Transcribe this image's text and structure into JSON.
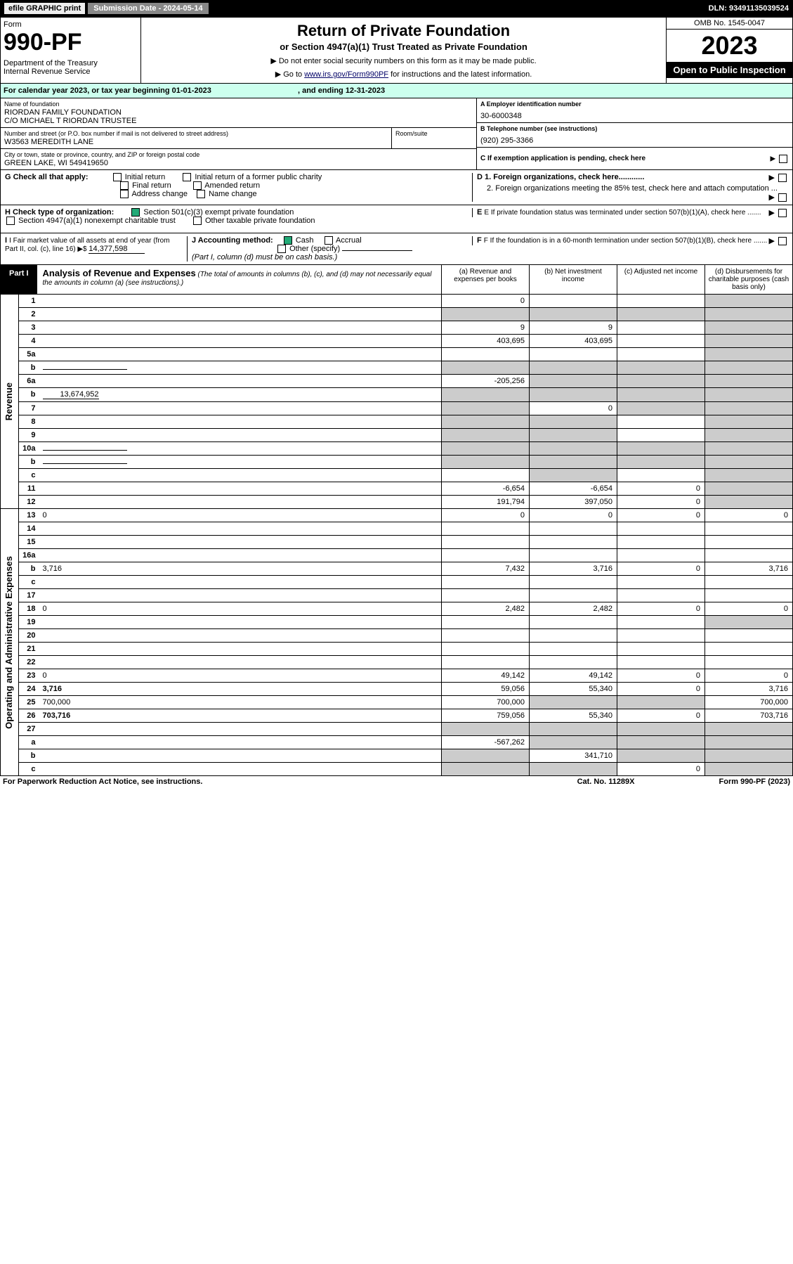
{
  "topbar": {
    "efile": "efile GRAPHIC print",
    "submission": "Submission Date - 2024-05-14",
    "dln": "DLN: 93491135039524"
  },
  "header": {
    "form_label": "Form",
    "form_no": "990-PF",
    "dept": "Department of the Treasury\nInternal Revenue Service",
    "title": "Return of Private Foundation",
    "subtitle": "or Section 4947(a)(1) Trust Treated as Private Foundation",
    "instr1": "▶ Do not enter social security numbers on this form as it may be made public.",
    "instr2_pre": "▶ Go to ",
    "instr2_link": "www.irs.gov/Form990PF",
    "instr2_post": " for instructions and the latest information.",
    "omb": "OMB No. 1545-0047",
    "year": "2023",
    "open": "Open to Public Inspection"
  },
  "calyear": {
    "text": "For calendar year 2023, or tax year beginning 01-01-2023",
    "ending": ", and ending 12-31-2023"
  },
  "entity": {
    "name_lbl": "Name of foundation",
    "name": "RIORDAN FAMILY FOUNDATION\nC/O MICHAEL T RIORDAN TRUSTEE",
    "addr_lbl": "Number and street (or P.O. box number if mail is not delivered to street address)",
    "addr": "W3563 MEREDITH LANE",
    "room_lbl": "Room/suite",
    "room": "",
    "city_lbl": "City or town, state or province, country, and ZIP or foreign postal code",
    "city": "GREEN LAKE, WI  549419650",
    "ein_lbl": "A Employer identification number",
    "ein": "30-6000348",
    "phone_lbl": "B Telephone number (see instructions)",
    "phone": "(920) 295-3366",
    "c_lbl": "C If exemption application is pending, check here"
  },
  "checks": {
    "g_lbl": "G Check all that apply:",
    "g_initial": "Initial return",
    "g_initial_former": "Initial return of a former public charity",
    "g_final": "Final return",
    "g_amended": "Amended return",
    "g_address": "Address change",
    "g_name": "Name change",
    "d1": "D 1. Foreign organizations, check here............",
    "d2": "2. Foreign organizations meeting the 85% test, check here and attach computation ...",
    "h_lbl": "H Check type of organization:",
    "h_501c3": "Section 501(c)(3) exempt private foundation",
    "h_4947": "Section 4947(a)(1) nonexempt charitable trust",
    "h_other": "Other taxable private foundation",
    "e_lbl": "E  If private foundation status was terminated under section 507(b)(1)(A), check here .......",
    "i_lbl": "I Fair market value of all assets at end of year (from Part II, col. (c), line 16) ▶$ ",
    "i_val": "14,377,598",
    "j_lbl": "J Accounting method:",
    "j_cash": "Cash",
    "j_accrual": "Accrual",
    "j_other": "Other (specify)",
    "j_note": "(Part I, column (d) must be on cash basis.)",
    "f_lbl": "F  If the foundation is in a 60-month termination under section 507(b)(1)(B), check here ......."
  },
  "part1": {
    "label": "Part I",
    "title": "Analysis of Revenue and Expenses",
    "title_note": " (The total of amounts in columns (b), (c), and (d) may not necessarily equal the amounts in column (a) (see instructions).)",
    "col_a": "(a) Revenue and expenses per books",
    "col_b": "(b) Net investment income",
    "col_c": "(c) Adjusted net income",
    "col_d": "(d) Disbursements for charitable purposes (cash basis only)"
  },
  "sides": {
    "revenue": "Revenue",
    "expenses": "Operating and Administrative Expenses"
  },
  "rows": [
    {
      "n": "1",
      "d": "",
      "a": "0",
      "b": "",
      "c": "",
      "shade": [
        "d"
      ]
    },
    {
      "n": "2",
      "d": "",
      "a": "",
      "b": "",
      "c": "",
      "shade": [
        "a",
        "b",
        "c",
        "d"
      ],
      "bold_check": true
    },
    {
      "n": "3",
      "d": "",
      "a": "9",
      "b": "9",
      "c": "",
      "shade": [
        "d"
      ]
    },
    {
      "n": "4",
      "d": "",
      "a": "403,695",
      "b": "403,695",
      "c": "",
      "shade": [
        "d"
      ]
    },
    {
      "n": "5a",
      "d": "",
      "a": "",
      "b": "",
      "c": "",
      "shade": [
        "d"
      ]
    },
    {
      "n": "b",
      "d": "",
      "a": "",
      "b": "",
      "c": "",
      "shade": [
        "a",
        "b",
        "c",
        "d"
      ],
      "inline": true
    },
    {
      "n": "6a",
      "d": "",
      "a": "-205,256",
      "b": "",
      "c": "",
      "shade": [
        "b",
        "c",
        "d"
      ]
    },
    {
      "n": "b",
      "d": "",
      "a": "",
      "b": "",
      "c": "",
      "shade": [
        "a",
        "b",
        "c",
        "d"
      ],
      "inline_val": "13,674,952"
    },
    {
      "n": "7",
      "d": "",
      "a": "",
      "b": "0",
      "c": "",
      "shade": [
        "a",
        "c",
        "d"
      ]
    },
    {
      "n": "8",
      "d": "",
      "a": "",
      "b": "",
      "c": "",
      "shade": [
        "a",
        "b",
        "d"
      ]
    },
    {
      "n": "9",
      "d": "",
      "a": "",
      "b": "",
      "c": "",
      "shade": [
        "a",
        "b",
        "d"
      ]
    },
    {
      "n": "10a",
      "d": "",
      "a": "",
      "b": "",
      "c": "",
      "shade": [
        "a",
        "b",
        "c",
        "d"
      ],
      "inline": true
    },
    {
      "n": "b",
      "d": "",
      "a": "",
      "b": "",
      "c": "",
      "shade": [
        "a",
        "b",
        "c",
        "d"
      ],
      "inline": true
    },
    {
      "n": "c",
      "d": "",
      "a": "",
      "b": "",
      "c": "",
      "shade": [
        "b",
        "d"
      ]
    },
    {
      "n": "11",
      "d": "",
      "a": "-6,654",
      "b": "-6,654",
      "c": "0",
      "shade": [
        "d"
      ]
    },
    {
      "n": "12",
      "d": "",
      "a": "191,794",
      "b": "397,050",
      "c": "0",
      "shade": [
        "d"
      ],
      "bold": true
    },
    {
      "n": "13",
      "d": "0",
      "a": "0",
      "b": "0",
      "c": "0"
    },
    {
      "n": "14",
      "d": "",
      "a": "",
      "b": "",
      "c": ""
    },
    {
      "n": "15",
      "d": "",
      "a": "",
      "b": "",
      "c": ""
    },
    {
      "n": "16a",
      "d": "",
      "a": "",
      "b": "",
      "c": ""
    },
    {
      "n": "b",
      "d": "3,716",
      "a": "7,432",
      "b": "3,716",
      "c": "0"
    },
    {
      "n": "c",
      "d": "",
      "a": "",
      "b": "",
      "c": ""
    },
    {
      "n": "17",
      "d": "",
      "a": "",
      "b": "",
      "c": ""
    },
    {
      "n": "18",
      "d": "0",
      "a": "2,482",
      "b": "2,482",
      "c": "0"
    },
    {
      "n": "19",
      "d": "",
      "a": "",
      "b": "",
      "c": "",
      "shade": [
        "d"
      ]
    },
    {
      "n": "20",
      "d": "",
      "a": "",
      "b": "",
      "c": ""
    },
    {
      "n": "21",
      "d": "",
      "a": "",
      "b": "",
      "c": ""
    },
    {
      "n": "22",
      "d": "",
      "a": "",
      "b": "",
      "c": ""
    },
    {
      "n": "23",
      "d": "0",
      "a": "49,142",
      "b": "49,142",
      "c": "0"
    },
    {
      "n": "24",
      "d": "3,716",
      "a": "59,056",
      "b": "55,340",
      "c": "0",
      "bold": true
    },
    {
      "n": "25",
      "d": "700,000",
      "a": "700,000",
      "b": "",
      "c": "",
      "shade": [
        "b",
        "c"
      ]
    },
    {
      "n": "26",
      "d": "703,716",
      "a": "759,056",
      "b": "55,340",
      "c": "0",
      "bold": true
    },
    {
      "n": "27",
      "d": "",
      "a": "",
      "b": "",
      "c": "",
      "shade": [
        "a",
        "b",
        "c",
        "d"
      ]
    },
    {
      "n": "a",
      "d": "",
      "a": "-567,262",
      "b": "",
      "c": "",
      "shade": [
        "b",
        "c",
        "d"
      ],
      "bold": true
    },
    {
      "n": "b",
      "d": "",
      "a": "",
      "b": "341,710",
      "c": "",
      "shade": [
        "a",
        "c",
        "d"
      ],
      "bold": true
    },
    {
      "n": "c",
      "d": "",
      "a": "",
      "b": "",
      "c": "0",
      "shade": [
        "a",
        "b",
        "d"
      ],
      "bold": true
    }
  ],
  "footer": {
    "left": "For Paperwork Reduction Act Notice, see instructions.",
    "center": "Cat. No. 11289X",
    "right": "Form 990-PF (2023)"
  }
}
